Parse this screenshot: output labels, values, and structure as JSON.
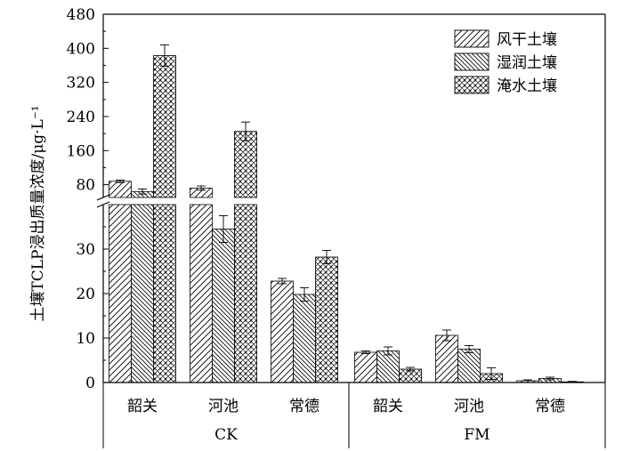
{
  "chart_data": {
    "type": "bar",
    "ylabel": "土壤TCLP浸出质量浓度/μg·L⁻¹",
    "axis_break": {
      "lower_ylim": [
        0,
        40
      ],
      "upper_ylim": [
        50,
        480
      ]
    },
    "lower_ticks": [
      0,
      10,
      20,
      30
    ],
    "upper_ticks": [
      80,
      160,
      240,
      320,
      400,
      480
    ],
    "groups": [
      {
        "name": "CK",
        "categories": [
          "韶关",
          "河池",
          "常德"
        ]
      },
      {
        "name": "FM",
        "categories": [
          "韶关",
          "河池",
          "常德"
        ]
      }
    ],
    "series": [
      {
        "name": "风干土壤",
        "pattern": "forward",
        "values": [
          88,
          72,
          22.8,
          6.8,
          10.6,
          0.4
        ],
        "errors": [
          3,
          5,
          0.6,
          0.3,
          1.2,
          0.2
        ]
      },
      {
        "name": "湿润土壤",
        "pattern": "backward",
        "values": [
          64,
          34.5,
          19.8,
          7.1,
          7.5,
          0.9
        ],
        "errors": [
          6,
          3,
          1.5,
          0.9,
          0.8,
          0.3
        ]
      },
      {
        "name": "淹水土壤",
        "pattern": "cross",
        "values": [
          383,
          205,
          28.2,
          3.0,
          2.0,
          0.15
        ],
        "errors": [
          25,
          22,
          1.5,
          0.4,
          1.3,
          0.1
        ]
      }
    ],
    "legend_position": "top-right",
    "grid": false
  }
}
